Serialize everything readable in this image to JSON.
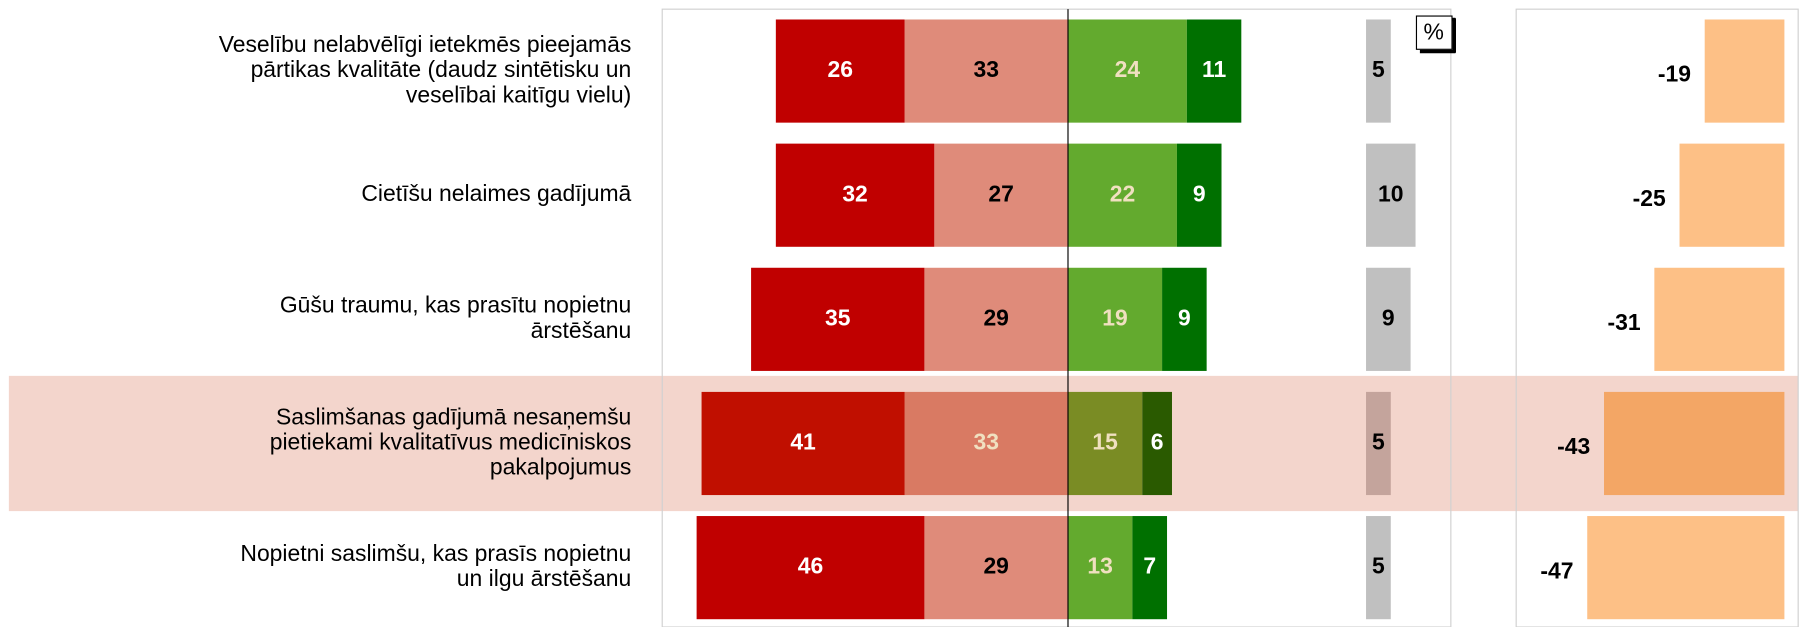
{
  "chart_data": {
    "type": "diverging_bar",
    "unit_label": "%",
    "categories": [
      [
        "Veselību nelabvēlīgi ietekmēs pieejamās",
        "pārtikas kvalitāte (daudz sintētisku un",
        "veselībai kaitīgu vielu)"
      ],
      [
        "Cietīšu nelaimes gadījumā"
      ],
      [
        "Gūšu traumu, kas prasītu nopietnu",
        "ārstēšanu"
      ],
      [
        "Saslimšanas gadījumā nesaņemšu",
        "pietiekami kvalitatīvus medicīniskos",
        "pakalpojumus"
      ],
      [
        "Nopietni saslimšu, kas prasīs nopietnu",
        "un ilgu ārstēšanu"
      ]
    ],
    "negative_series": [
      {
        "color": "#c00000",
        "highlight_color": "#c00f00",
        "values": [
          26,
          32,
          35,
          41,
          46
        ]
      },
      {
        "color": "#df8b7a",
        "highlight_color": "#d97a63",
        "values": [
          33,
          27,
          29,
          33,
          29
        ]
      }
    ],
    "positive_series": [
      {
        "color": "#63aa2e",
        "highlight_color": "#7a8c24",
        "values": [
          24,
          22,
          19,
          15,
          13
        ]
      },
      {
        "color": "#007000",
        "highlight_color": "#2a5a00",
        "values": [
          11,
          9,
          9,
          6,
          7
        ]
      }
    ],
    "other_series": {
      "color": "#c0c0c0",
      "highlight_color": "#c4a49c",
      "values": [
        5,
        10,
        9,
        5,
        5
      ]
    },
    "net_series": {
      "color": "#fdc086",
      "highlight_color": "#f3a665",
      "values": [
        -19,
        -25,
        -31,
        -43,
        -47
      ]
    },
    "highlight_row": 3,
    "highlight_band_color": "#f3d5cc"
  }
}
